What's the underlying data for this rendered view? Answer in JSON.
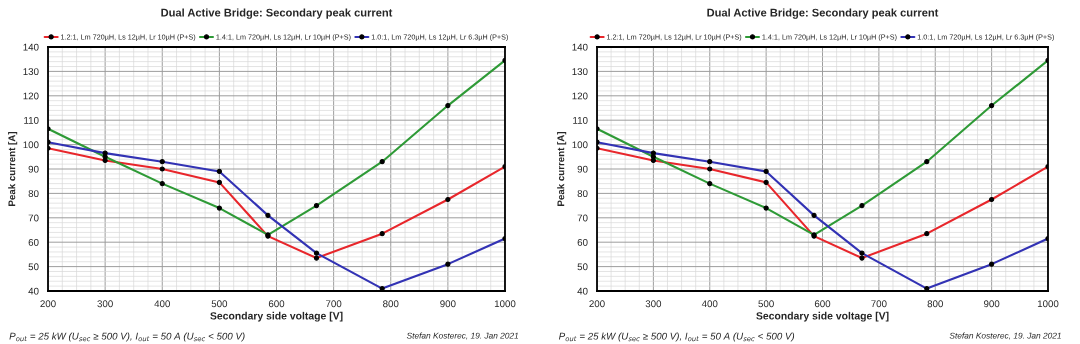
{
  "chart_data": [
    {
      "type": "line",
      "title": "Dual Active Bridge: Secondary peak current",
      "xlabel": "Secondary side voltage [V]",
      "ylabel": "Peak current [A]",
      "x": [
        200,
        300,
        400,
        500,
        585,
        670,
        785,
        900,
        1000
      ],
      "series": [
        {
          "name": "1.2:1, Lm 720µH, Ls 12µH, Lr 10µH (P+S)",
          "color": "#e8262b",
          "values": [
            98.5,
            93.5,
            90,
            84.5,
            62.5,
            53.5,
            63.5,
            77.5,
            91
          ]
        },
        {
          "name": "1.4:1, Lm 720µH, Ls 12µH, Lr 10µH (P+S)",
          "color": "#2e9a36",
          "values": [
            106.5,
            95,
            84,
            74,
            63,
            75,
            93,
            116,
            134.5
          ]
        },
        {
          "name": "1.0:1, Lm 720µH, Ls 12µH, Lr 6.3µH (P+S)",
          "color": "#3232b4",
          "values": [
            101,
            96.5,
            93,
            89,
            71,
            55.5,
            41,
            51,
            61.5
          ]
        }
      ],
      "xlim": [
        200,
        1000
      ],
      "xticks": [
        200,
        300,
        400,
        500,
        600,
        700,
        800,
        900,
        1000
      ],
      "ylim": [
        40,
        140
      ],
      "yticks": [
        40,
        50,
        60,
        70,
        80,
        90,
        100,
        110,
        120,
        130,
        140
      ],
      "grid": true,
      "legend": "top",
      "marker": "circle",
      "line_style": "solid",
      "annotations": [
        "P$_{out}$ = 25 kW (U$_{sec}$ ≥ 500 V), I$_{out}$ = 50 A (U$_{sec}$ < 500 V)",
        "Stefan Kosterec, 19. Jan 2021"
      ]
    },
    {
      "type": "line",
      "title": "Dual Active Bridge: Secondary peak current",
      "xlabel": "Secondary side voltage [V]",
      "ylabel": "Peak current [A]",
      "x": [
        200,
        300,
        400,
        500,
        585,
        670,
        785,
        900,
        1000
      ],
      "series": [
        {
          "name": "1.2:1, Lm 720µH, Ls 12µH, Lr 10µH (P+S)",
          "color": "#e8262b",
          "values": [
            98.5,
            93.5,
            90,
            84.5,
            62.5,
            53.5,
            63.5,
            77.5,
            91
          ]
        },
        {
          "name": "1.4:1, Lm 720µH, Ls 12µH, Lr 10µH (P+S)",
          "color": "#2e9a36",
          "values": [
            106.5,
            95,
            84,
            74,
            63,
            75,
            93,
            116,
            134.5
          ]
        },
        {
          "name": "1.0:1, Lm 720µH, Ls 12µH, Lr 6.3µH (P+S)",
          "color": "#3232b4",
          "values": [
            101,
            96.5,
            93,
            89,
            71,
            55.5,
            41,
            51,
            61.5
          ]
        }
      ],
      "xlim": [
        200,
        1000
      ],
      "xticks": [
        200,
        300,
        400,
        500,
        600,
        700,
        800,
        900,
        1000
      ],
      "ylim": [
        40,
        140
      ],
      "yticks": [
        40,
        50,
        60,
        70,
        80,
        90,
        100,
        110,
        120,
        130,
        140
      ],
      "grid": true,
      "legend": "top",
      "marker": "circle",
      "line_style": "solid",
      "annotations": [
        "P$_{out}$ = 25 kW (U$_{sec}$ ≥ 500 V), I$_{out}$ = 50 A (U$_{sec}$ < 500 V)",
        "Stefan Kosterec, 19. Jan 2021"
      ]
    }
  ]
}
